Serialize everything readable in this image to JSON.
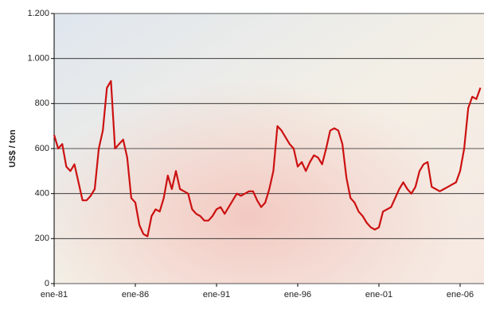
{
  "chart_data": {
    "type": "line",
    "y_label": "US$ / ton",
    "categories": [
      "ene-81",
      null,
      null,
      null,
      null,
      null,
      null,
      null,
      null,
      null,
      null,
      null,
      null,
      null,
      null,
      null,
      null,
      null,
      null,
      null,
      "ene-86",
      null,
      null,
      null,
      null,
      null,
      null,
      null,
      null,
      null,
      null,
      null,
      null,
      null,
      null,
      null,
      null,
      null,
      null,
      null,
      "ene-91",
      null,
      null,
      null,
      null,
      null,
      null,
      null,
      null,
      null,
      null,
      null,
      null,
      null,
      null,
      null,
      null,
      null,
      null,
      null,
      "ene-96",
      null,
      null,
      null,
      null,
      null,
      null,
      null,
      null,
      null,
      null,
      null,
      null,
      null,
      null,
      null,
      null,
      null,
      null,
      null,
      "ene-01",
      null,
      null,
      null,
      null,
      null,
      null,
      null,
      null,
      null,
      null,
      null,
      null,
      null,
      null,
      null,
      null,
      null,
      null,
      null,
      "ene-06",
      null,
      null,
      null,
      null,
      null
    ],
    "values": [
      660,
      600,
      620,
      520,
      500,
      530,
      450,
      370,
      370,
      390,
      420,
      600,
      680,
      870,
      900,
      600,
      620,
      640,
      560,
      380,
      360,
      260,
      220,
      210,
      300,
      330,
      320,
      380,
      480,
      420,
      500,
      420,
      410,
      400,
      330,
      310,
      300,
      280,
      280,
      300,
      330,
      340,
      310,
      340,
      370,
      400,
      390,
      400,
      410,
      410,
      370,
      340,
      360,
      420,
      500,
      700,
      680,
      650,
      620,
      600,
      520,
      540,
      500,
      540,
      570,
      560,
      530,
      600,
      680,
      690,
      680,
      620,
      470,
      380,
      360,
      320,
      300,
      270,
      250,
      240,
      250,
      320,
      330,
      340,
      380,
      420,
      450,
      420,
      400,
      430,
      500,
      530,
      540,
      430,
      420,
      410,
      420,
      430,
      440,
      450,
      500,
      600,
      780,
      830,
      820,
      870
    ],
    "color": "#cc1111",
    "ylim": [
      0,
      1200
    ],
    "yticks": [
      0,
      200,
      400,
      600,
      800,
      {
        "value": 1000,
        "label": "1.000"
      },
      {
        "value": 1200,
        "label": "1.200"
      }
    ],
    "grid": true
  }
}
